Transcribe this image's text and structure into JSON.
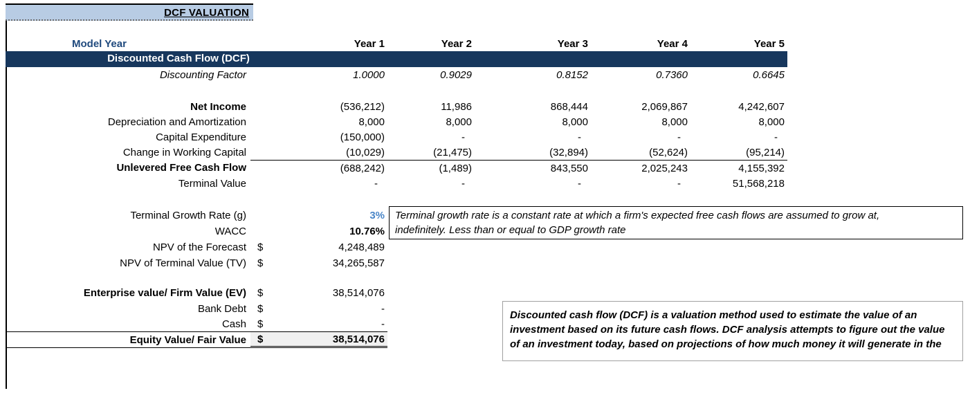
{
  "title": {
    "text": "DCF VALUATION"
  },
  "header": {
    "model_year": "Model Year",
    "years": [
      "Year 1",
      "Year 2",
      "Year 3",
      "Year 4",
      "Year 5"
    ]
  },
  "banner": {
    "label": "Discounted Cash Flow (DCF)"
  },
  "cashflow": {
    "rows": [
      {
        "label": "Discounting Factor",
        "values": [
          "1.0000",
          "0.9029",
          "0.8152",
          "0.7360",
          "0.6645"
        ]
      },
      {
        "label": "Net Income",
        "values": [
          "(536,212)",
          "11,986",
          "868,444",
          "2,069,867",
          "4,242,607"
        ]
      },
      {
        "label": "Depreciation and Amortization",
        "values": [
          "8,000",
          "8,000",
          "8,000",
          "8,000",
          "8,000"
        ]
      },
      {
        "label": "Capital Expenditure",
        "values": [
          "(150,000)",
          "-",
          "-",
          "-",
          "-"
        ]
      },
      {
        "label": "Change in Working Capital",
        "values": [
          "(10,029)",
          "(21,475)",
          "(32,894)",
          "(52,624)",
          "(95,214)"
        ]
      },
      {
        "label": "Unlevered Free Cash Flow",
        "values": [
          "(688,242)",
          "(1,489)",
          "843,550",
          "2,025,243",
          "4,155,392"
        ]
      },
      {
        "label": "Terminal Value",
        "values": [
          "-",
          "-",
          "-",
          "-",
          "51,568,218"
        ]
      }
    ]
  },
  "summary": {
    "rows": [
      {
        "label": "Terminal Growth Rate (g)",
        "currency": "",
        "value": "3%"
      },
      {
        "label": "WACC",
        "currency": "",
        "value": "10.76%"
      },
      {
        "label": "NPV of the Forecast",
        "currency": "$",
        "value": "4,248,489"
      },
      {
        "label": "NPV of Terminal Value (TV)",
        "currency": "$",
        "value": "34,265,587"
      },
      {
        "label": "Enterprise value/ Firm Value (EV)",
        "currency": "$",
        "value": "38,514,076"
      },
      {
        "label": "Bank Debt",
        "currency": "$",
        "value": "-"
      },
      {
        "label": "Cash",
        "currency": "$",
        "value": "-"
      },
      {
        "label": "Equity Value/ Fair Value",
        "currency": "$",
        "value": "38,514,076"
      }
    ]
  },
  "notes": {
    "terminal_growth_lines": [
      "Terminal growth rate is a constant rate at which a firm's expected free cash flows are assumed to grow at,",
      "indefinitely. Less than or equal to GDP growth rate"
    ],
    "dcf_lines": [
      "Discounted cash flow (DCF) is a valuation method used to estimate the value of an",
      "investment based on its future cash flows. DCF analysis attempts to figure out the value",
      "of an investment today, based on projections of how much money it will generate in the"
    ]
  },
  "colors": {
    "banner_navy": "#17375d",
    "title_light_blue": "#b8cce4",
    "model_year_blue": "#1f497d",
    "growth_rate_blue": "#4a86c8",
    "equity_fill_gray": "#f0f0f0"
  }
}
